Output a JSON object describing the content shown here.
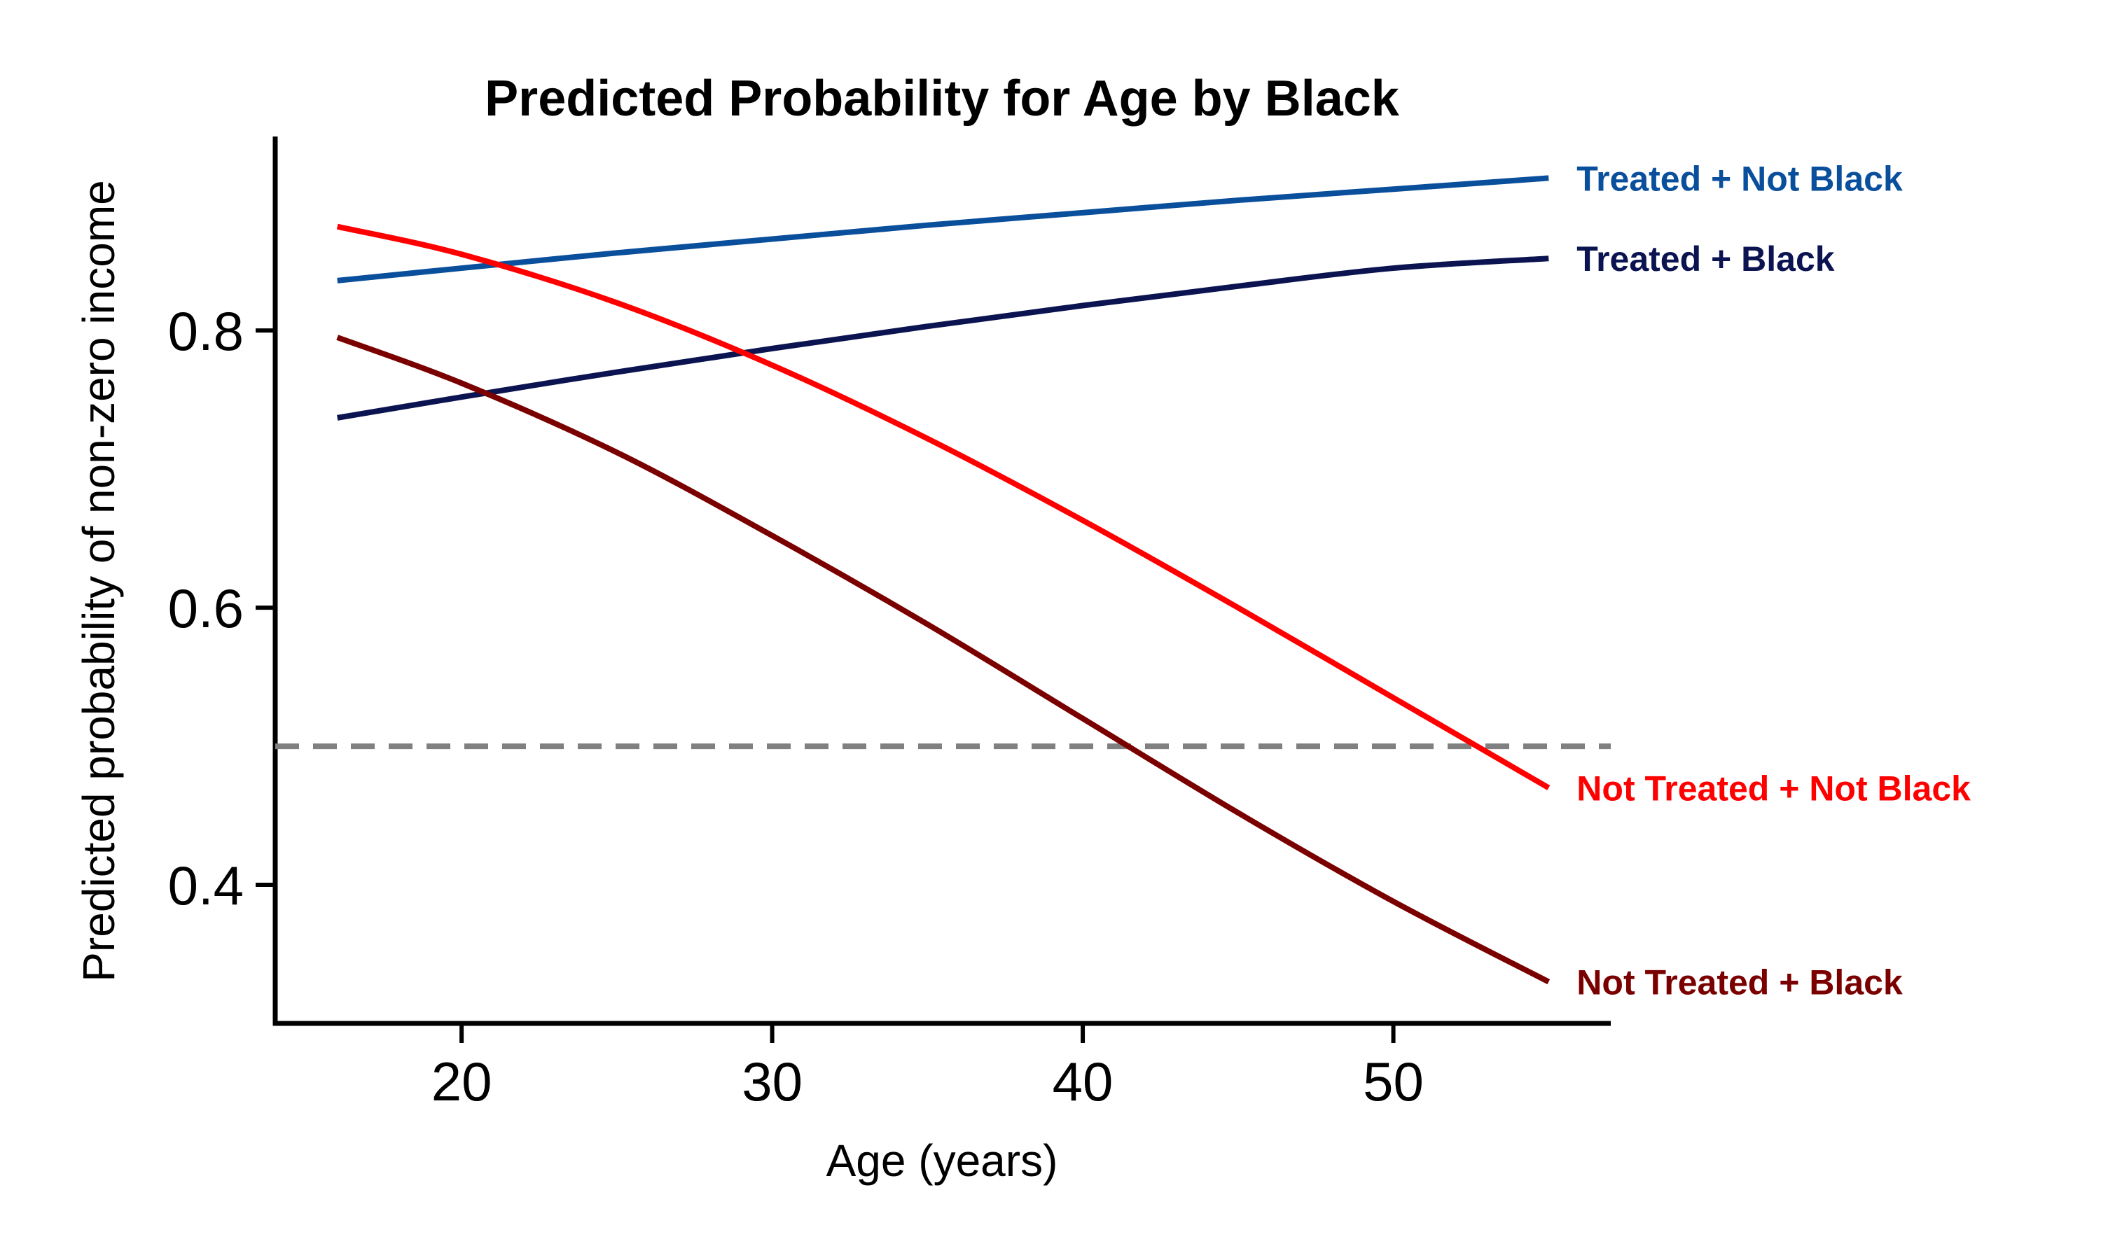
{
  "chart_data": {
    "type": "line",
    "title": "Predicted Probability for Age by Black",
    "xlabel": "Age (years)",
    "ylabel": "Predicted probability of non-zero income",
    "xlim": [
      14,
      57
    ],
    "ylim": [
      0.3,
      0.94
    ],
    "xticks": [
      20,
      30,
      40,
      50
    ],
    "yticks": [
      0.4,
      0.6,
      0.8
    ],
    "x_tick_labels": [
      "20",
      "30",
      "40",
      "50"
    ],
    "y_tick_labels": [
      "0.4",
      "0.6",
      "0.8"
    ],
    "reference_line": {
      "y": 0.5,
      "style": "dashed",
      "color": "#808080"
    },
    "grid": false,
    "legend": "direct labels at right end of lines",
    "x": [
      16,
      20,
      25,
      30,
      35,
      40,
      45,
      50,
      55
    ],
    "series": [
      {
        "name": "Treated + Not Black",
        "color": "#0A4F9B",
        "values": [
          0.836,
          0.845,
          0.856,
          0.866,
          0.876,
          0.885,
          0.894,
          0.902,
          0.91
        ]
      },
      {
        "name": "Treated + Black",
        "color": "#0B1450",
        "values": [
          0.737,
          0.752,
          0.77,
          0.787,
          0.803,
          0.818,
          0.832,
          0.845,
          0.852
        ]
      },
      {
        "name": "Not Treated + Not Black",
        "color": "#FF0000",
        "values": [
          0.875,
          0.855,
          0.82,
          0.775,
          0.722,
          0.663,
          0.6,
          0.535,
          0.47
        ]
      },
      {
        "name": "Not Treated + Black",
        "color": "#7A0000",
        "values": [
          0.795,
          0.762,
          0.712,
          0.652,
          0.588,
          0.52,
          0.452,
          0.388,
          0.33
        ]
      }
    ]
  }
}
